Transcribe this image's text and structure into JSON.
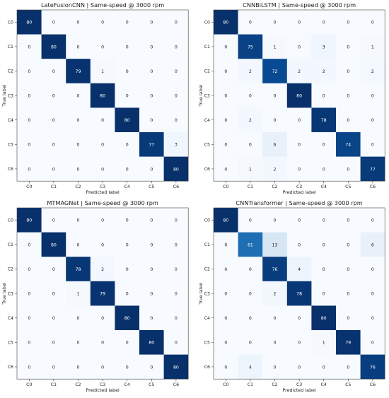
{
  "chart_data": [
    {
      "type": "heatmap",
      "title": "LateFusionCNN | Same-speed @ 3000 rpm",
      "xlabel": "Predicted label",
      "ylabel": "True label",
      "categories": [
        "C0",
        "C1",
        "C2",
        "C3",
        "C4",
        "C5",
        "C6"
      ],
      "values": [
        [
          80,
          0,
          0,
          0,
          0,
          0,
          0
        ],
        [
          0,
          80,
          0,
          0,
          0,
          0,
          0
        ],
        [
          0,
          0,
          79,
          1,
          0,
          0,
          0
        ],
        [
          0,
          0,
          0,
          80,
          0,
          0,
          0
        ],
        [
          0,
          0,
          0,
          0,
          80,
          0,
          0
        ],
        [
          0,
          0,
          0,
          0,
          0,
          77,
          3
        ],
        [
          0,
          0,
          0,
          0,
          0,
          0,
          80
        ]
      ],
      "vmax": 80
    },
    {
      "type": "heatmap",
      "title": "CNNBiLSTM | Same-speed @ 3000 rpm",
      "xlabel": "Predicted label",
      "ylabel": "True label",
      "categories": [
        "C0",
        "C1",
        "C2",
        "C3",
        "C4",
        "C5",
        "C6"
      ],
      "values": [
        [
          80,
          0,
          0,
          0,
          0,
          0,
          0
        ],
        [
          0,
          75,
          1,
          0,
          3,
          0,
          1
        ],
        [
          0,
          2,
          72,
          2,
          2,
          0,
          2
        ],
        [
          0,
          0,
          0,
          80,
          0,
          0,
          0
        ],
        [
          0,
          2,
          0,
          0,
          78,
          0,
          0
        ],
        [
          0,
          0,
          6,
          0,
          0,
          74,
          0
        ],
        [
          0,
          1,
          2,
          0,
          0,
          0,
          77
        ]
      ],
      "vmax": 80
    },
    {
      "type": "heatmap",
      "title": "MTMAGNet | Same-speed @ 3000 rpm",
      "xlabel": "Predicted label",
      "ylabel": "True label",
      "categories": [
        "C0",
        "C1",
        "C2",
        "C3",
        "C4",
        "C5",
        "C6"
      ],
      "values": [
        [
          80,
          0,
          0,
          0,
          0,
          0,
          0
        ],
        [
          0,
          80,
          0,
          0,
          0,
          0,
          0
        ],
        [
          0,
          0,
          78,
          2,
          0,
          0,
          0
        ],
        [
          0,
          0,
          1,
          79,
          0,
          0,
          0
        ],
        [
          0,
          0,
          0,
          0,
          80,
          0,
          0
        ],
        [
          0,
          0,
          0,
          0,
          0,
          80,
          0
        ],
        [
          0,
          0,
          0,
          0,
          0,
          0,
          80
        ]
      ],
      "vmax": 80
    },
    {
      "type": "heatmap",
      "title": "CNNTransformer | Same-speed @ 3000 rpm",
      "xlabel": "Predicted label",
      "ylabel": "True label",
      "categories": [
        "C0",
        "C1",
        "C2",
        "C3",
        "C4",
        "C5",
        "C6"
      ],
      "values": [
        [
          80,
          0,
          0,
          0,
          0,
          0,
          0
        ],
        [
          0,
          61,
          13,
          0,
          0,
          0,
          6
        ],
        [
          0,
          0,
          76,
          4,
          0,
          0,
          0
        ],
        [
          0,
          0,
          2,
          78,
          0,
          0,
          0
        ],
        [
          0,
          0,
          0,
          0,
          80,
          0,
          0
        ],
        [
          0,
          0,
          0,
          0,
          1,
          79,
          0
        ],
        [
          0,
          4,
          0,
          0,
          0,
          0,
          76
        ]
      ],
      "vmax": 80
    }
  ]
}
